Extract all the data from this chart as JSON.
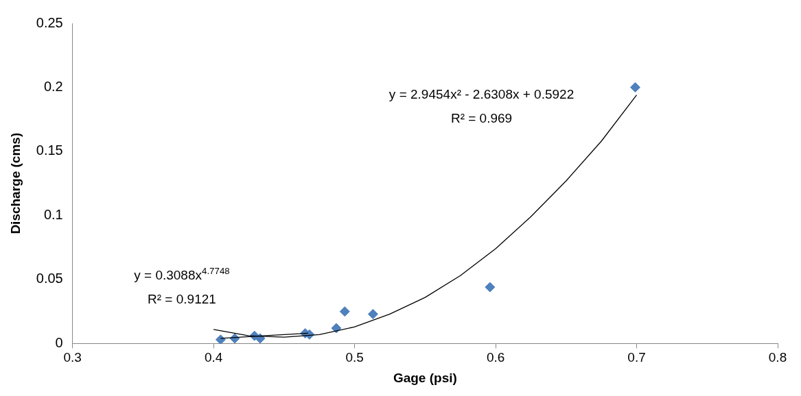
{
  "chart_data": {
    "type": "scatter",
    "xlabel": "Gage (psi)",
    "ylabel": "Discharge (cms)",
    "xlim": [
      0.3,
      0.8
    ],
    "xticks": [
      0.3,
      0.4,
      0.5,
      0.6,
      0.7,
      0.8
    ],
    "ylim": [
      0,
      0.25
    ],
    "yticks": [
      0,
      0.05,
      0.1,
      0.15,
      0.2,
      0.25
    ],
    "grid": false,
    "legend": false,
    "marker": "diamond",
    "series": [
      {
        "type": "scatter",
        "color": "#4f81bd",
        "x": [
          0.405,
          0.415,
          0.429,
          0.433,
          0.465,
          0.468,
          0.487,
          0.493,
          0.513,
          0.596,
          0.699
        ],
        "values": [
          0.003,
          0.004,
          0.006,
          0.004,
          0.008,
          0.007,
          0.012,
          0.025,
          0.023,
          0.044,
          0.2
        ]
      },
      {
        "type": "line",
        "color": "#000000",
        "marker": "none",
        "line_style": "solid",
        "x": [
          0.4,
          0.425,
          0.45,
          0.475,
          0.5,
          0.525,
          0.55,
          0.575,
          0.6,
          0.625,
          0.65,
          0.675,
          0.7
        ],
        "values": [
          0.011,
          0.006,
          0.005,
          0.007,
          0.013,
          0.023,
          0.036,
          0.053,
          0.074,
          0.099,
          0.127,
          0.158,
          0.194
        ]
      },
      {
        "type": "line",
        "color": "#000000",
        "marker": "none",
        "line_style": "solid",
        "x": [
          0.405,
          0.435,
          0.467
        ],
        "values": [
          0.004,
          0.006,
          0.008
        ]
      }
    ],
    "annotations": [
      "y = 2.9454x² - 2.6308x + 0.5922",
      "R² = 0.969",
      "y = 0.3088x$^{4.7748}$",
      "R² = 0.9121"
    ]
  }
}
